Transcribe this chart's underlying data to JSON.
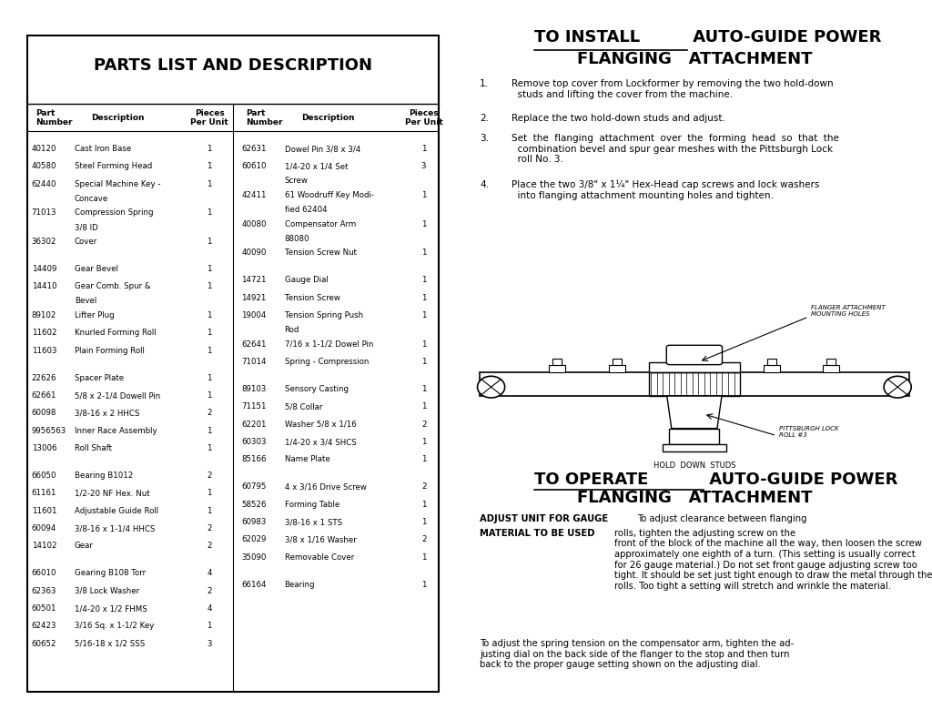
{
  "left_parts": [
    [
      "40120",
      "Cast Iron Base",
      "1"
    ],
    [
      "40580",
      "Steel Forming Head",
      "1"
    ],
    [
      "62440",
      "Special Machine Key -\n    Concave",
      "1"
    ],
    [
      "71013",
      "Compression Spring\n    3/8 ID",
      "1"
    ],
    [
      "36302",
      "Cover",
      "1"
    ],
    [
      "",
      "",
      ""
    ],
    [
      "14409",
      "Gear Bevel",
      "1"
    ],
    [
      "14410",
      "Gear Comb. Spur &\n    Bevel",
      "1"
    ],
    [
      "89102",
      "Lifter Plug",
      "1"
    ],
    [
      "11602",
      "Knurled Forming Roll",
      "1"
    ],
    [
      "11603",
      "Plain Forming Roll",
      "1"
    ],
    [
      "",
      "",
      ""
    ],
    [
      "22626",
      "Spacer Plate",
      "1"
    ],
    [
      "62661",
      "5/8 x 2-1/4 Dowell Pin",
      "1"
    ],
    [
      "60098",
      "3/8-16 x 2 HHCS",
      "2"
    ],
    [
      "9956563",
      "Inner Race Assembly",
      "1"
    ],
    [
      "13006",
      "Roll Shaft",
      "1"
    ],
    [
      "",
      "",
      ""
    ],
    [
      "66050",
      "Bearing B1012",
      "2"
    ],
    [
      "61161",
      "1/2-20 NF Hex. Nut",
      "1"
    ],
    [
      "11601",
      "Adjustable Guide Roll",
      "1"
    ],
    [
      "60094",
      "3/8-16 x 1-1/4 HHCS",
      "2"
    ],
    [
      "14102",
      "Gear",
      "2"
    ],
    [
      "",
      "",
      ""
    ],
    [
      "66010",
      "Gearing B108 Torr",
      "4"
    ],
    [
      "62363",
      "3/8 Lock Washer",
      "2"
    ],
    [
      "60501",
      "1/4-20 x 1/2 FHMS",
      "4"
    ],
    [
      "62423",
      "3/16 Sq. x 1-1/2 Key",
      "1"
    ],
    [
      "60652",
      "5/16-18 x 1/2 SSS",
      "3"
    ]
  ],
  "right_parts": [
    [
      "62631",
      "Dowel Pin 3/8 x 3/4",
      "1"
    ],
    [
      "60610",
      "1/4-20 x 1/4 Set\n    Screw",
      "3"
    ],
    [
      "42411",
      "61 Woodruff Key Modi-\n    fied 62404",
      "1"
    ],
    [
      "40080",
      "Compensator Arm\n    88080",
      "1"
    ],
    [
      "40090",
      "Tension Screw Nut",
      "1"
    ],
    [
      "",
      "",
      ""
    ],
    [
      "14721",
      "Gauge Dial",
      "1"
    ],
    [
      "14921",
      "Tension Screw",
      "1"
    ],
    [
      "19004",
      "Tension Spring Push\n    Rod",
      "1"
    ],
    [
      "62641",
      "7/16 x 1-1/2 Dowel Pin",
      "1"
    ],
    [
      "71014",
      "Spring - Compression",
      "1"
    ],
    [
      "",
      "",
      ""
    ],
    [
      "89103",
      "Sensory Casting",
      "1"
    ],
    [
      "71151",
      "5/8 Collar",
      "1"
    ],
    [
      "62201",
      "Washer 5/8 x 1/16",
      "2"
    ],
    [
      "60303",
      "1/4-20 x 3/4 SHCS",
      "1"
    ],
    [
      "85166",
      "Name Plate",
      "1"
    ],
    [
      "",
      "",
      ""
    ],
    [
      "60795",
      "4 x 3/16 Drive Screw",
      "2"
    ],
    [
      "58526",
      "Forming Table",
      "1"
    ],
    [
      "60983",
      "3/8-16 x 1 STS",
      "1"
    ],
    [
      "62029",
      "3/8 x 1/16 Washer",
      "2"
    ],
    [
      "35090",
      "Removable Cover",
      "1"
    ],
    [
      "",
      "",
      ""
    ],
    [
      "66164",
      "Bearing",
      "1"
    ]
  ],
  "install_steps": [
    "Remove top cover from Lockformer by removing the two hold-down\n  studs and lifting the cover from the machine.",
    "Replace the two hold-down studs and adjust.",
    "Set  the  flanging  attachment  over  the  forming  head  so  that  the\n  combination bevel and spur gear meshes with the Pittsburgh Lock\n  roll No. 3.",
    "Place the two 3/8\" x 1¼\" Hex-Head cap screws and lock washers\n  into flanging attachment mounting holes and tighten."
  ],
  "operate_text3": "To adjust the spring tension on the compensator arm, tighten the ad-\njusting dial on the back side of the flanger to the stop and then turn\nback to the proper gauge setting shown on the adjusting dial."
}
